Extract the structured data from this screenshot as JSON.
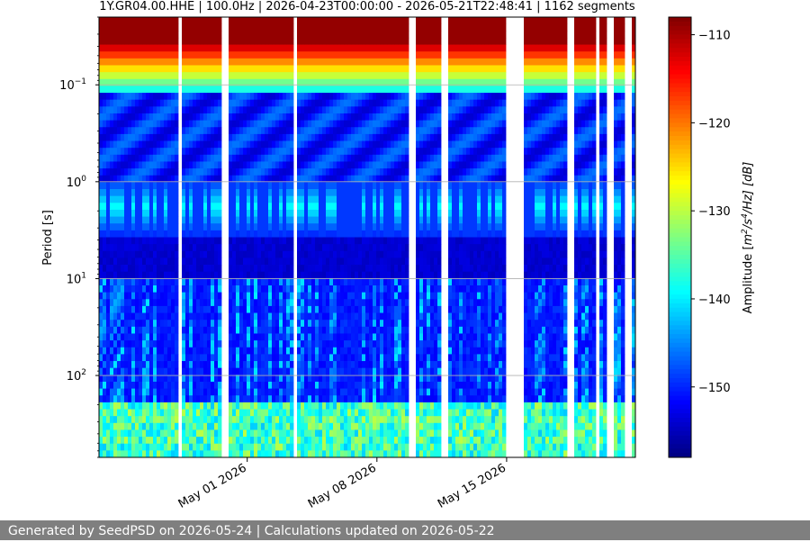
{
  "chart_data": {
    "type": "heatmap",
    "title": "1Y.GR04.00.HHE | 100.0Hz | 2026-04-23T00:00:00 - 2026-05-21T22:48:41 | 1162 segments",
    "xlabel": "",
    "ylabel": "Period [s]",
    "x_ticks": [
      "May 01 2026",
      "May 08 2026",
      "May 15 2026"
    ],
    "x_range": [
      "2026-04-23T00:00:00",
      "2026-05-21T22:48:41"
    ],
    "y_scale": "log",
    "y_ticks": [
      {
        "value": 0.1,
        "base": "10",
        "exp": "−1"
      },
      {
        "value": 1,
        "base": "10",
        "exp": "0"
      },
      {
        "value": 10,
        "base": "10",
        "exp": "1"
      },
      {
        "value": 100,
        "base": "10",
        "exp": "2"
      }
    ],
    "y_range": [
      0.02,
      700
    ],
    "y_inverted": true,
    "grid": true,
    "colormap": "jet",
    "colorbar": {
      "label_prefix": "Amplitude [",
      "label_m": "m",
      "label_m_exp": "2",
      "label_mid": "/s",
      "label_s_exp": "4",
      "label_suffix": "/Hz] [dB]",
      "range": [
        -158,
        -108
      ],
      "ticks": [
        "−110",
        "−120",
        "−130",
        "−140",
        "−150"
      ],
      "tick_values": [
        -110,
        -120,
        -130,
        -140,
        -150
      ]
    }
  },
  "footer": {
    "text": "Generated by SeedPSD on 2026-05-24 | Calculations updated on 2026-05-22"
  }
}
